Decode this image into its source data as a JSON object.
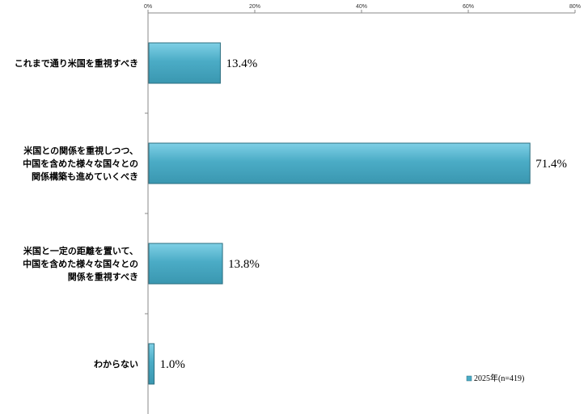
{
  "chart_data": {
    "type": "bar",
    "orientation": "horizontal",
    "categories": [
      [
        "これまで通り米国を重視すべき"
      ],
      [
        "米国との関係を重視しつつ、",
        "中国を含めた様々な国々との",
        "関係構築も進めていくべき"
      ],
      [
        "米国と一定の距離を置いて、",
        "中国を含めた様々な国々との",
        "関係を重視すべき"
      ],
      [
        "わからない"
      ]
    ],
    "series": [
      {
        "name": "2025年(n=419)",
        "values": [
          13.4,
          71.4,
          13.8,
          1.0
        ]
      }
    ],
    "value_labels": [
      "13.4%",
      "71.4%",
      "13.8%",
      "1.0%"
    ],
    "xlim": [
      0,
      80
    ],
    "xticks": [
      0,
      20,
      40,
      60,
      80
    ],
    "xtick_labels": [
      "0%",
      "20%",
      "40%",
      "60%",
      "80%"
    ],
    "x_axis_position": "top",
    "grid": false,
    "legend_position": "bottom-right",
    "bar_color": "#4bacc6"
  }
}
